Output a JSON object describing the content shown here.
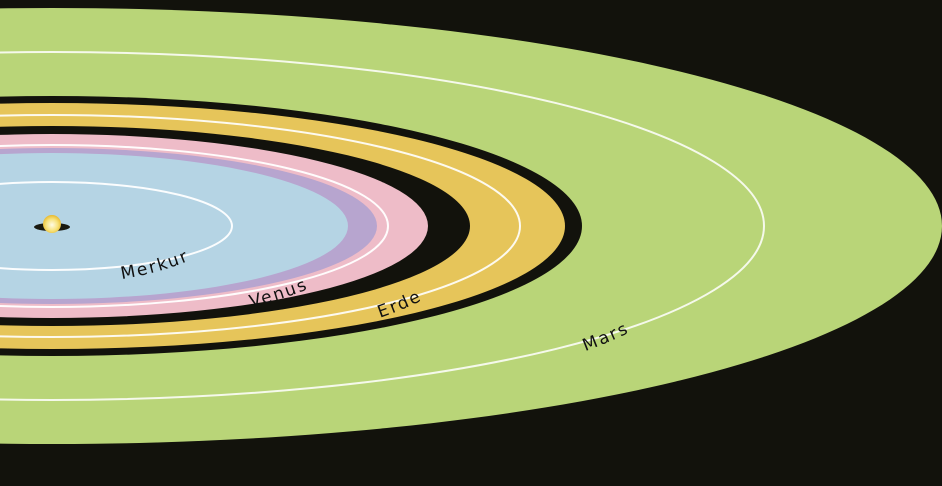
{
  "diagram": {
    "planets": [
      {
        "name": "Merkur",
        "zone_color": "#b5d4e4",
        "orbit_color": "#ffffff"
      },
      {
        "name": "Venus",
        "zone_color": "#eebcc8",
        "orbit_color": "#ffffff"
      },
      {
        "name": "Erde",
        "zone_color": "#e6c55a",
        "orbit_color": "#ffffff"
      },
      {
        "name": "Mars",
        "zone_color": "#b9d578",
        "orbit_color": "#ffffff"
      }
    ],
    "colors": {
      "background": "#12120c",
      "gap": "#12120c",
      "venus_inner_band": "#b7a5cf",
      "sun": "#f7e27a"
    }
  }
}
